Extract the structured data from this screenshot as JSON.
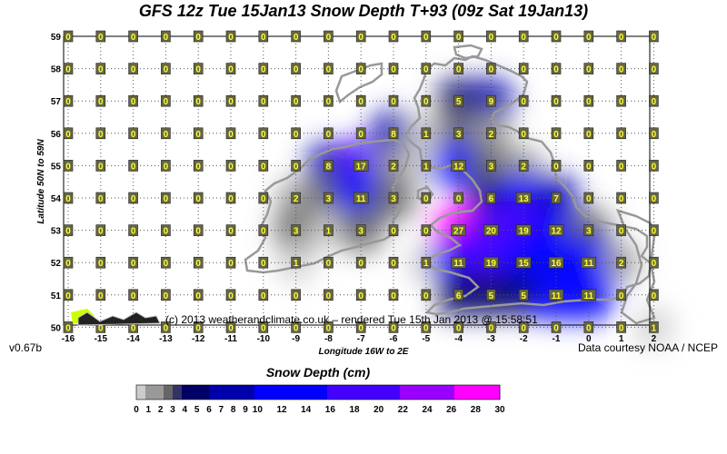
{
  "title": "GFS 12z Tue 15Jan13 Snow Depth T+93 (09z Sat 19Jan13)",
  "version": "v0.67b",
  "courtesy": "Data courtesy NOAA / NCEP",
  "credit": "(c) 2013 weatherandclimate.co.uk – rendered Tue 15th Jan 2013 @ 15:58:51",
  "x_axis_title": "Longitude 16W to 2E",
  "y_axis_title": "Latitude 50N to 59N",
  "legend_title": "Snow Depth (cm)",
  "colors": {
    "land_outline": "#999999",
    "grid": "#555555",
    "label_box": "#666644",
    "label_text": "#ffff33",
    "logo": "#ccff00"
  },
  "map": {
    "longitudes": [
      -16,
      -15,
      -14,
      -13,
      -12,
      -11,
      -10,
      -9,
      -8,
      -7,
      -6,
      -5,
      -4,
      -3,
      -2,
      -1,
      0,
      1,
      2
    ],
    "latitudes": [
      59,
      58,
      57,
      56,
      55,
      54,
      53,
      52,
      51,
      50
    ],
    "x_tick_labels": [
      "-16",
      "-15",
      "-14",
      "-13",
      "-12",
      "-11",
      "-10",
      "-9",
      "-8",
      "-7",
      "-6",
      "-5",
      "-4",
      "-3",
      "-2",
      "-1",
      "0",
      "1",
      "2"
    ],
    "y_tick_labels": [
      "59",
      "58",
      "57",
      "56",
      "55",
      "54",
      "53",
      "52",
      "51",
      "50"
    ],
    "snow_depth_rows": [
      {
        "lat": 59,
        "values": [
          0,
          0,
          0,
          0,
          0,
          0,
          0,
          0,
          0,
          0,
          0,
          0,
          0,
          0,
          0,
          0,
          0,
          0,
          0
        ]
      },
      {
        "lat": 58,
        "values": [
          0,
          0,
          0,
          0,
          0,
          0,
          0,
          0,
          0,
          0,
          0,
          0,
          0,
          0,
          0,
          0,
          0,
          0,
          0
        ]
      },
      {
        "lat": 57,
        "values": [
          0,
          0,
          0,
          0,
          0,
          0,
          0,
          0,
          0,
          0,
          0,
          0,
          5,
          9,
          0,
          0,
          0,
          0,
          0
        ]
      },
      {
        "lat": 56,
        "values": [
          0,
          0,
          0,
          0,
          0,
          0,
          0,
          0,
          0,
          0,
          8,
          1,
          3,
          2,
          0,
          0,
          0,
          0,
          0
        ]
      },
      {
        "lat": 55,
        "values": [
          0,
          0,
          0,
          0,
          0,
          0,
          0,
          0,
          8,
          17,
          2,
          1,
          12,
          3,
          2,
          0,
          0,
          0,
          0
        ]
      },
      {
        "lat": 54,
        "values": [
          0,
          0,
          0,
          0,
          0,
          0,
          0,
          2,
          3,
          11,
          3,
          0,
          0,
          6,
          13,
          7,
          0,
          0,
          0
        ]
      },
      {
        "lat": 53,
        "values": [
          0,
          0,
          0,
          0,
          0,
          0,
          0,
          3,
          1,
          3,
          0,
          0,
          27,
          20,
          19,
          12,
          3,
          0,
          0
        ]
      },
      {
        "lat": 52,
        "values": [
          0,
          0,
          0,
          0,
          0,
          0,
          0,
          1,
          0,
          0,
          0,
          1,
          11,
          19,
          15,
          16,
          11,
          2,
          0
        ]
      },
      {
        "lat": 51,
        "values": [
          0,
          0,
          0,
          0,
          0,
          0,
          0,
          0,
          0,
          0,
          0,
          0,
          6,
          5,
          5,
          11,
          11,
          0,
          0
        ]
      },
      {
        "lat": 50,
        "values": [
          0,
          0,
          0,
          0,
          0,
          0,
          0,
          0,
          0,
          0,
          0,
          0,
          0,
          0,
          0,
          0,
          0,
          0,
          1
        ]
      }
    ]
  },
  "legend": {
    "min": 0,
    "max": 30,
    "tick_labels": [
      "0",
      "1",
      "2",
      "3",
      "4",
      "5",
      "6",
      "7",
      "8",
      "9",
      "10",
      "12",
      "14",
      "16",
      "18",
      "20",
      "22",
      "24",
      "26",
      "28",
      "30"
    ]
  }
}
